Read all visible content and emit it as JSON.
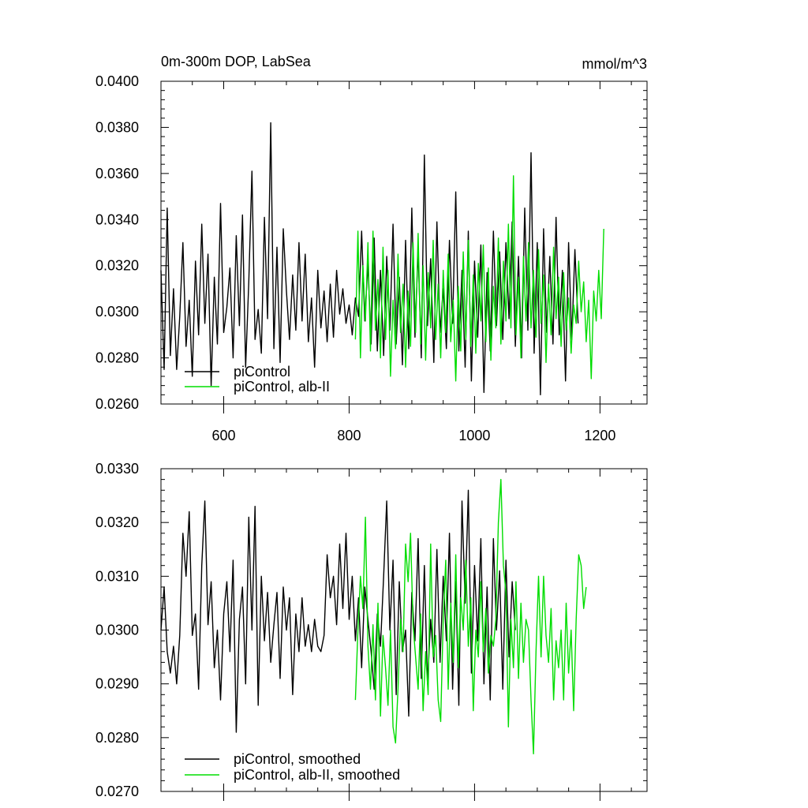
{
  "colors": {
    "control": "#000000",
    "experiment": "#00dd00",
    "frame": "#000000"
  },
  "chart_data": [
    {
      "type": "line",
      "title": "0m-300m DOP, LabSea",
      "units": "mmol/m^3",
      "xlim": [
        500,
        1275
      ],
      "ylim": [
        0.026,
        0.04
      ],
      "yticks": [
        "0.0260",
        "0.0280",
        "0.0300",
        "0.0320",
        "0.0340",
        "0.0360",
        "0.0380",
        "0.0400"
      ],
      "xticks": [
        "600",
        "800",
        "1000",
        "1200"
      ],
      "legend": {
        "position": "bottom-left"
      },
      "series": [
        {
          "name": "piControl",
          "x_start": 500,
          "x_step": 5,
          "values": [
            0.0318,
            0.0275,
            0.0345,
            0.0281,
            0.031,
            0.0275,
            0.0298,
            0.033,
            0.0285,
            0.0305,
            0.0272,
            0.0322,
            0.029,
            0.0338,
            0.0295,
            0.0325,
            0.0268,
            0.0315,
            0.0286,
            0.0347,
            0.0291,
            0.0302,
            0.0319,
            0.028,
            0.0333,
            0.0294,
            0.0342,
            0.0276,
            0.0313,
            0.0361,
            0.0288,
            0.0301,
            0.0282,
            0.0341,
            0.0297,
            0.0382,
            0.0284,
            0.0328,
            0.0278,
            0.0336,
            0.0309,
            0.0288,
            0.0316,
            0.0292,
            0.033,
            0.0296,
            0.0325,
            0.0287,
            0.0306,
            0.0276,
            0.0318,
            0.0293,
            0.0309,
            0.0287,
            0.0312,
            0.0289,
            0.0318,
            0.0299,
            0.031,
            0.0295,
            0.0303,
            0.029,
            0.0306,
            0.0298,
            0.0335,
            0.0296,
            0.0321,
            0.0286,
            0.0332,
            0.0283,
            0.0318,
            0.0281,
            0.0324,
            0.0292,
            0.0338,
            0.0286,
            0.0315,
            0.0277,
            0.0331,
            0.0284,
            0.0345,
            0.0289,
            0.0327,
            0.028,
            0.0368,
            0.0294,
            0.0323,
            0.0278,
            0.0339,
            0.0291,
            0.031,
            0.0284,
            0.0331,
            0.0295,
            0.0352,
            0.0283,
            0.0318,
            0.0276,
            0.0335,
            0.027,
            0.0322,
            0.0289,
            0.0329,
            0.0265,
            0.0317,
            0.0283,
            0.0335,
            0.0294,
            0.0326,
            0.0288,
            0.033,
            0.0297,
            0.0339,
            0.0285,
            0.0324,
            0.028,
            0.0345,
            0.0292,
            0.0369,
            0.0282,
            0.033,
            0.0264,
            0.0336,
            0.0291,
            0.0324,
            0.0286,
            0.0341,
            0.029,
            0.0318,
            0.027,
            0.033,
            0.0288,
            0.0327,
            0.0295
          ]
        },
        {
          "name": "piControl, alb-II",
          "x_start": 810,
          "x_step": 4,
          "values": [
            0.0288,
            0.0335,
            0.028,
            0.032,
            0.0296,
            0.033,
            0.0283,
            0.0335,
            0.0292,
            0.0314,
            0.028,
            0.0328,
            0.0288,
            0.0318,
            0.0272,
            0.0305,
            0.0284,
            0.0325,
            0.0291,
            0.0312,
            0.0276,
            0.0309,
            0.0285,
            0.033,
            0.0291,
            0.0334,
            0.0286,
            0.032,
            0.0279,
            0.0317,
            0.0293,
            0.0331,
            0.0288,
            0.0312,
            0.028,
            0.0318,
            0.0291,
            0.0325,
            0.0287,
            0.0305,
            0.027,
            0.0311,
            0.0283,
            0.0326,
            0.0288,
            0.0331,
            0.0285,
            0.0316,
            0.0282,
            0.0321,
            0.0296,
            0.0329,
            0.0287,
            0.0319,
            0.0279,
            0.0311,
            0.0293,
            0.0332,
            0.0286,
            0.0322,
            0.0296,
            0.0338,
            0.0293,
            0.0359,
            0.029,
            0.0315,
            0.028,
            0.0324,
            0.0296,
            0.033,
            0.0293,
            0.0318,
            0.0289,
            0.0327,
            0.0295,
            0.0316,
            0.0278,
            0.0312,
            0.029,
            0.0328,
            0.0297,
            0.0315,
            0.0285,
            0.0317,
            0.0292,
            0.0306,
            0.0282,
            0.0303,
            0.0295,
            0.0322,
            0.03,
            0.0313,
            0.0287,
            0.0305,
            0.0271,
            0.0309,
            0.0296,
            0.0318,
            0.0297,
            0.0336
          ]
        }
      ],
      "legend_entries": [
        "piControl",
        "piControl, alb-II"
      ]
    },
    {
      "type": "line",
      "xlim": [
        500,
        1275
      ],
      "ylim": [
        0.027,
        0.033
      ],
      "yticks": [
        "0.0270",
        "0.0280",
        "0.0290",
        "0.0300",
        "0.0310",
        "0.0320",
        "0.0330"
      ],
      "legend": {
        "position": "bottom-left"
      },
      "series": [
        {
          "name": "piControl, smoothed",
          "x_start": 500,
          "x_step": 5,
          "values": [
            0.03,
            0.0308,
            0.0296,
            0.0292,
            0.0297,
            0.029,
            0.0299,
            0.0318,
            0.031,
            0.0322,
            0.0299,
            0.0303,
            0.0289,
            0.0312,
            0.0324,
            0.0301,
            0.0309,
            0.0293,
            0.03,
            0.0287,
            0.0303,
            0.0309,
            0.0296,
            0.0313,
            0.0281,
            0.0302,
            0.0308,
            0.029,
            0.0321,
            0.03,
            0.0323,
            0.0286,
            0.031,
            0.0298,
            0.0307,
            0.0294,
            0.0301,
            0.0307,
            0.0291,
            0.0308,
            0.03,
            0.0306,
            0.0288,
            0.0303,
            0.0296,
            0.0306,
            0.0297,
            0.0301,
            0.0296,
            0.0302,
            0.0297,
            0.0296,
            0.0299,
            0.0314,
            0.0306,
            0.031,
            0.0301,
            0.0316,
            0.0304,
            0.0318,
            0.0302,
            0.031,
            0.0298,
            0.0306,
            0.0293,
            0.0308,
            0.0302,
            0.0296,
            0.0289,
            0.0303,
            0.0297,
            0.031,
            0.0324,
            0.03,
            0.0313,
            0.0288,
            0.0309,
            0.0296,
            0.03,
            0.0284,
            0.0307,
            0.0298,
            0.0317,
            0.0291,
            0.0312,
            0.029,
            0.0302,
            0.0294,
            0.0315,
            0.0294,
            0.031,
            0.0298,
            0.0318,
            0.0289,
            0.0309,
            0.0286,
            0.0324,
            0.0305,
            0.0326,
            0.0292,
            0.0312,
            0.0298,
            0.0317,
            0.029,
            0.0308,
            0.0287,
            0.0317,
            0.03,
            0.0311,
            0.0289,
            0.0313,
            0.0295,
            0.0309,
            0.03
          ]
        },
        {
          "name": "piControl, alb-II, smoothed",
          "x_start": 810,
          "x_step": 4,
          "values": [
            0.0287,
            0.03,
            0.031,
            0.0304,
            0.0321,
            0.0297,
            0.0289,
            0.0301,
            0.0287,
            0.0305,
            0.0284,
            0.0299,
            0.0293,
            0.0286,
            0.03,
            0.0282,
            0.0279,
            0.0289,
            0.0302,
            0.0296,
            0.0316,
            0.0309,
            0.0318,
            0.0301,
            0.0295,
            0.0289,
            0.0303,
            0.0285,
            0.0296,
            0.0288,
            0.0316,
            0.0295,
            0.0299,
            0.0287,
            0.0283,
            0.0302,
            0.0313,
            0.0289,
            0.0305,
            0.0294,
            0.0314,
            0.0293,
            0.0306,
            0.03,
            0.0313,
            0.0297,
            0.0306,
            0.0285,
            0.03,
            0.0295,
            0.0309,
            0.0296,
            0.0304,
            0.0292,
            0.0299,
            0.0297,
            0.0302,
            0.032,
            0.0328,
            0.0312,
            0.0307,
            0.0282,
            0.0302,
            0.0293,
            0.0309,
            0.0291,
            0.0305,
            0.0294,
            0.0302,
            0.03,
            0.0287,
            0.0277,
            0.0296,
            0.031,
            0.0295,
            0.031,
            0.0299,
            0.0294,
            0.0304,
            0.0287,
            0.0298,
            0.0293,
            0.03,
            0.0287,
            0.0305,
            0.0292,
            0.03,
            0.0285,
            0.0302,
            0.0314,
            0.0312,
            0.0304,
            0.0308
          ]
        }
      ],
      "legend_entries": [
        "piControl, smoothed",
        "piControl, alb-II, smoothed"
      ]
    }
  ]
}
